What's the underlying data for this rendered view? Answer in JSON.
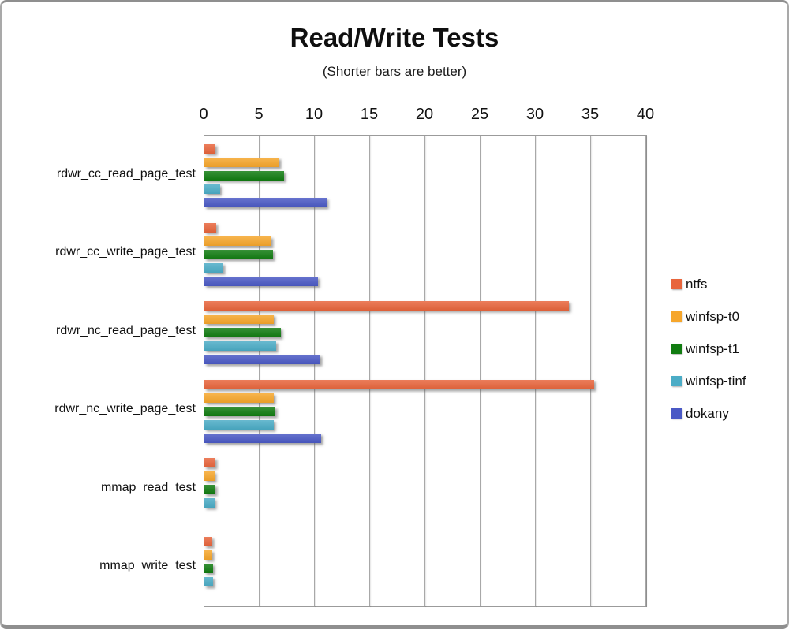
{
  "window": {
    "background": "#ffffff",
    "border_color": "#8f8f8f"
  },
  "chart_data": {
    "type": "bar",
    "orientation": "horizontal",
    "title": "Read/Write Tests",
    "subtitle": "(Shorter bars are better)",
    "categories": [
      "rdwr_cc_read_page_test",
      "rdwr_cc_write_page_test",
      "rdwr_nc_read_page_test",
      "rdwr_nc_write_page_test",
      "mmap_read_test",
      "mmap_write_test"
    ],
    "series": [
      {
        "name": "ntfs",
        "color": "#E8653C",
        "values": [
          1.0,
          1.1,
          33.0,
          35.3,
          1.0,
          0.7
        ]
      },
      {
        "name": "winfsp-t0",
        "color": "#F6A62B",
        "values": [
          6.8,
          6.1,
          6.3,
          6.3,
          0.9,
          0.7
        ]
      },
      {
        "name": "winfsp-t1",
        "color": "#117C11",
        "values": [
          7.2,
          6.2,
          6.9,
          6.4,
          1.0,
          0.75
        ]
      },
      {
        "name": "winfsp-tinf",
        "color": "#4BACC6",
        "values": [
          1.4,
          1.7,
          6.5,
          6.3,
          0.95,
          0.75
        ]
      },
      {
        "name": "dokany",
        "color": "#4A59C5",
        "values": [
          11.1,
          10.3,
          10.5,
          10.6,
          0,
          0
        ]
      }
    ],
    "x_axis": {
      "min": 0,
      "max": 40,
      "tick_interval": 5,
      "ticks": [
        0,
        5,
        10,
        15,
        20,
        25,
        30,
        35,
        40
      ],
      "position": "top"
    },
    "legend": {
      "position": "right"
    },
    "grid": true,
    "gridline_color": "#a8a8a8"
  }
}
